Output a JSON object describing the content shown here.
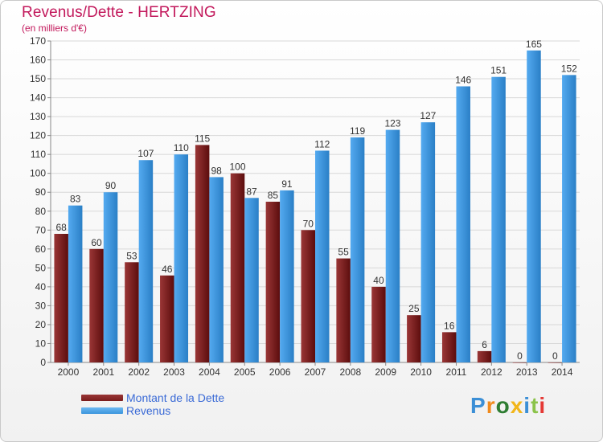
{
  "header": {
    "title": "Revenus/Dette - HERTZING",
    "subtitle": "(en milliers d'€)"
  },
  "chart_data": {
    "type": "bar",
    "title": "Revenus/Dette - HERTZING",
    "ylabel": "(en milliers d'€)",
    "xlabel": "",
    "ylim": [
      0,
      170
    ],
    "ytick_step": 10,
    "grid": true,
    "legend_position": "bottom-left",
    "categories": [
      "2000",
      "2001",
      "2002",
      "2003",
      "2004",
      "2005",
      "2006",
      "2007",
      "2008",
      "2009",
      "2010",
      "2011",
      "2012",
      "2013",
      "2014"
    ],
    "series": [
      {
        "name": "Montant de la Dette",
        "color": "#7a1c1c",
        "values": [
          68,
          60,
          53,
          46,
          115,
          100,
          85,
          70,
          55,
          40,
          25,
          16,
          6,
          0,
          0
        ]
      },
      {
        "name": "Revenus",
        "color": "#3b95dc",
        "values": [
          83,
          90,
          107,
          110,
          98,
          87,
          91,
          112,
          119,
          123,
          127,
          146,
          151,
          165,
          152
        ]
      }
    ]
  },
  "legend": {
    "debt_label": "Montant de la Dette",
    "revenue_label": "Revenus"
  },
  "brand": {
    "text": "Proxiti",
    "colors": [
      "#3b8fd6",
      "#f08a1c",
      "#2e7d32",
      "#f2b61a",
      "#3b8fd6",
      "#8bc34a",
      "#e53935"
    ]
  }
}
